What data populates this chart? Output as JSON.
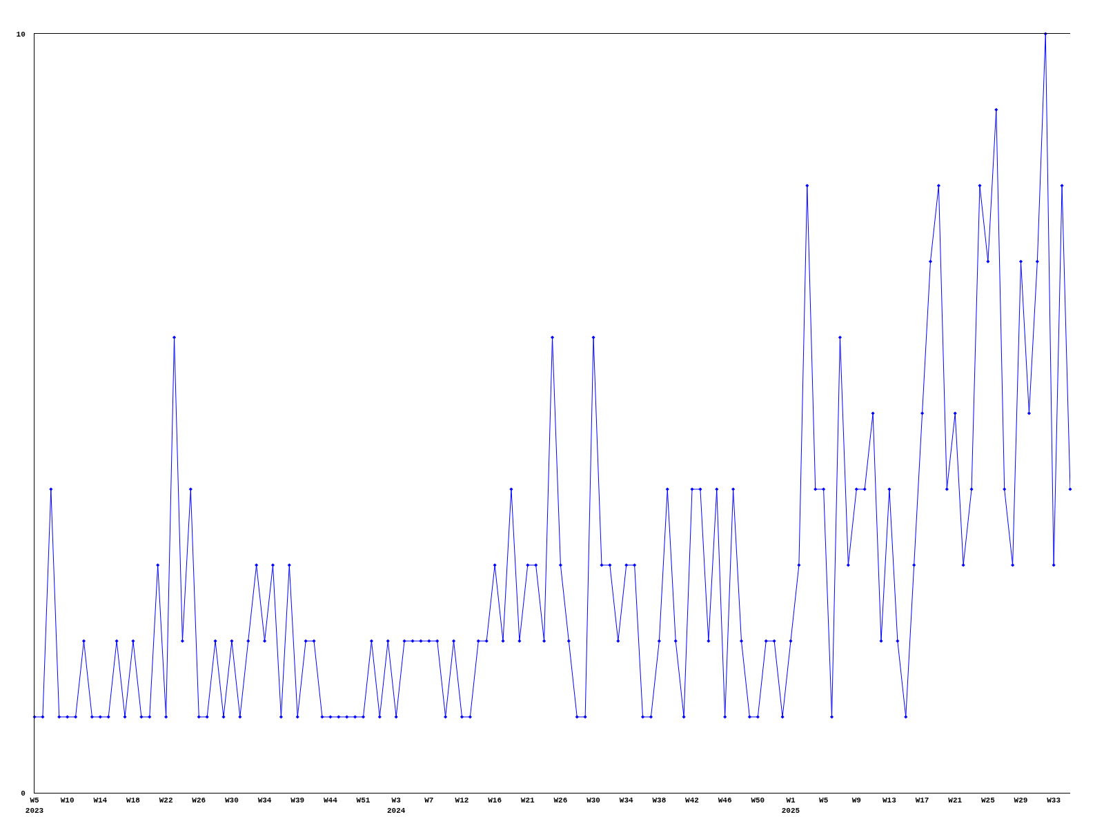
{
  "chart_data": {
    "type": "line",
    "categories": [
      "W5\n2023",
      null,
      null,
      null,
      "W10",
      null,
      null,
      null,
      "W14",
      null,
      null,
      null,
      "W18",
      null,
      null,
      null,
      "W22",
      null,
      null,
      null,
      "W26",
      null,
      null,
      null,
      "W30",
      null,
      null,
      null,
      "W34",
      null,
      null,
      null,
      "W39",
      null,
      null,
      null,
      "W44",
      null,
      null,
      null,
      "W51",
      null,
      null,
      null,
      "W3\n2024",
      null,
      null,
      null,
      "W7",
      null,
      null,
      null,
      "W12",
      null,
      null,
      null,
      "W16",
      null,
      null,
      null,
      "W21",
      null,
      null,
      null,
      "W26",
      null,
      null,
      null,
      "W30",
      null,
      null,
      null,
      "W34",
      null,
      null,
      null,
      "W38",
      null,
      null,
      null,
      "W42",
      null,
      null,
      null,
      "W46",
      null,
      null,
      null,
      "W50",
      null,
      null,
      null,
      "W1\n2025",
      null,
      null,
      null,
      "W5",
      null,
      null,
      null,
      "W9",
      null,
      null,
      null,
      "W13",
      null,
      null,
      null,
      "W17",
      null,
      null,
      null,
      "W21",
      null,
      null,
      null,
      "W25",
      null,
      null,
      null,
      "W29",
      null,
      null,
      null,
      "W33",
      null,
      null
    ],
    "values": [
      1,
      1,
      4,
      1,
      1,
      1,
      2,
      1,
      1,
      1,
      2,
      1,
      2,
      1,
      1,
      3,
      1,
      6,
      2,
      4,
      1,
      1,
      2,
      1,
      2,
      1,
      2,
      3,
      2,
      3,
      1,
      3,
      1,
      2,
      2,
      1,
      1,
      1,
      1,
      1,
      1,
      2,
      1,
      2,
      1,
      2,
      2,
      2,
      2,
      2,
      1,
      2,
      1,
      1,
      2,
      2,
      3,
      2,
      4,
      2,
      3,
      3,
      2,
      6,
      3,
      2,
      1,
      1,
      6,
      3,
      3,
      2,
      3,
      3,
      1,
      1,
      2,
      4,
      2,
      1,
      4,
      4,
      2,
      4,
      1,
      4,
      2,
      1,
      1,
      2,
      2,
      1,
      2,
      3,
      8,
      4,
      4,
      1,
      6,
      3,
      4,
      4,
      5,
      2,
      4,
      2,
      1,
      3,
      5,
      7,
      8,
      4,
      5,
      3,
      4,
      8,
      7,
      9,
      4,
      3,
      7,
      5,
      7,
      10,
      3,
      8,
      4
    ],
    "color": "#0000ff",
    "ylim": [
      0,
      10
    ],
    "yticks": [
      0,
      10
    ],
    "grid": false,
    "marker": "diamond",
    "line_style": "solid"
  }
}
